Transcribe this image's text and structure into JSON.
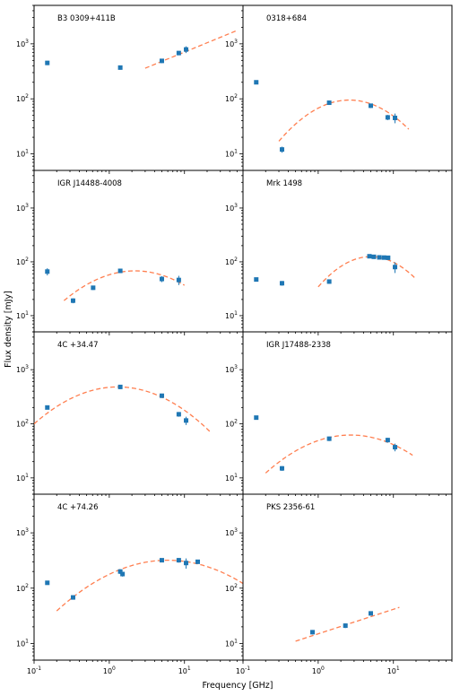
{
  "figure": {
    "xlabel": "Frequency [GHz]",
    "ylabel": "Flux density [mJy]",
    "marker_color": "#1f77b4",
    "fit_color": "#ff7f50"
  },
  "chart_data": [
    {
      "type": "scatter",
      "title": "B3 0309+411B",
      "xscale": "log",
      "yscale": "log",
      "xlim": [
        0.1,
        60
      ],
      "ylim": [
        5,
        5000
      ],
      "grid": false,
      "points": [
        {
          "x": 0.15,
          "y": 450,
          "yerr": 40
        },
        {
          "x": 1.4,
          "y": 370,
          "yerr": 30
        },
        {
          "x": 5.0,
          "y": 490,
          "yerr": 45
        },
        {
          "x": 8.4,
          "y": 680,
          "yerr": 60
        },
        {
          "x": 10.5,
          "y": 790,
          "yerr": 110
        }
      ],
      "fit": {
        "model": "power-law",
        "x_range": [
          3.0,
          50
        ],
        "points": [
          [
            3.0,
            360
          ],
          [
            50,
            1750
          ]
        ]
      }
    },
    {
      "type": "scatter",
      "title": "0318+684",
      "xscale": "log",
      "yscale": "log",
      "xlim": [
        0.1,
        60
      ],
      "ylim": [
        5,
        5000
      ],
      "grid": false,
      "points": [
        {
          "x": 0.15,
          "y": 200,
          "yerr": 15
        },
        {
          "x": 0.33,
          "y": 12,
          "yerr": 1.5
        },
        {
          "x": 1.4,
          "y": 85,
          "yerr": 7
        },
        {
          "x": 5.0,
          "y": 75,
          "yerr": 7
        },
        {
          "x": 8.4,
          "y": 46,
          "yerr": 5
        },
        {
          "x": 10.5,
          "y": 45,
          "yerr": 9
        }
      ],
      "fit": {
        "model": "log-parabola",
        "x_range": [
          0.3,
          16
        ],
        "peak": [
          2.6,
          95
        ],
        "curvature": 0.85
      }
    },
    {
      "type": "scatter",
      "title": "IGR J14488-4008",
      "xscale": "log",
      "yscale": "log",
      "xlim": [
        0.1,
        60
      ],
      "ylim": [
        5,
        5000
      ],
      "grid": false,
      "points": [
        {
          "x": 0.15,
          "y": 66,
          "yerr": 10
        },
        {
          "x": 0.33,
          "y": 19,
          "yerr": 2
        },
        {
          "x": 0.61,
          "y": 33,
          "yerr": 3
        },
        {
          "x": 1.4,
          "y": 68,
          "yerr": 6
        },
        {
          "x": 5.0,
          "y": 48,
          "yerr": 6
        },
        {
          "x": 8.4,
          "y": 46,
          "yerr": 9
        }
      ],
      "fit": {
        "model": "log-parabola",
        "x_range": [
          0.25,
          10
        ],
        "peak": [
          2.2,
          68
        ],
        "curvature": 0.62
      }
    },
    {
      "type": "scatter",
      "title": "Mrk 1498",
      "xscale": "log",
      "yscale": "log",
      "xlim": [
        0.1,
        60
      ],
      "ylim": [
        5,
        5000
      ],
      "grid": false,
      "points": [
        {
          "x": 0.15,
          "y": 47,
          "yerr": 4
        },
        {
          "x": 0.33,
          "y": 40,
          "yerr": 4
        },
        {
          "x": 1.4,
          "y": 43,
          "yerr": 4
        },
        {
          "x": 4.8,
          "y": 127,
          "yerr": 10
        },
        {
          "x": 5.5,
          "y": 124,
          "yerr": 10
        },
        {
          "x": 6.5,
          "y": 121,
          "yerr": 10
        },
        {
          "x": 7.5,
          "y": 120,
          "yerr": 10
        },
        {
          "x": 8.5,
          "y": 119,
          "yerr": 10
        },
        {
          "x": 10.5,
          "y": 80,
          "yerr": 18
        }
      ],
      "fit": {
        "model": "log-parabola",
        "x_range": [
          1.0,
          20
        ],
        "peak": [
          5.0,
          125
        ],
        "curvature": 1.15
      }
    },
    {
      "type": "scatter",
      "title": "4C +34.47",
      "xscale": "log",
      "yscale": "log",
      "xlim": [
        0.1,
        60
      ],
      "ylim": [
        5,
        5000
      ],
      "grid": false,
      "points": [
        {
          "x": 0.15,
          "y": 200,
          "yerr": 15
        },
        {
          "x": 1.4,
          "y": 480,
          "yerr": 40
        },
        {
          "x": 5.0,
          "y": 330,
          "yerr": 30
        },
        {
          "x": 8.4,
          "y": 150,
          "yerr": 15
        },
        {
          "x": 10.5,
          "y": 115,
          "yerr": 20
        }
      ],
      "fit": {
        "model": "log-parabola",
        "x_range": [
          0.1,
          22
        ],
        "peak": [
          1.3,
          480
        ],
        "curvature": 0.55
      }
    },
    {
      "type": "scatter",
      "title": "IGR J17488-2338",
      "xscale": "log",
      "yscale": "log",
      "xlim": [
        0.1,
        60
      ],
      "ylim": [
        5,
        5000
      ],
      "grid": false,
      "points": [
        {
          "x": 0.15,
          "y": 130,
          "yerr": 10
        },
        {
          "x": 0.33,
          "y": 15,
          "yerr": 1.5
        },
        {
          "x": 1.4,
          "y": 53,
          "yerr": 5
        },
        {
          "x": 8.4,
          "y": 50,
          "yerr": 5
        },
        {
          "x": 10.5,
          "y": 37,
          "yerr": 6
        }
      ],
      "fit": {
        "model": "log-parabola",
        "x_range": [
          0.2,
          18
        ],
        "peak": [
          2.7,
          62
        ],
        "curvature": 0.55
      }
    },
    {
      "type": "scatter",
      "title": "4C +74.26",
      "xscale": "log",
      "yscale": "log",
      "xlim": [
        0.1,
        60
      ],
      "ylim": [
        5,
        5000
      ],
      "grid": false,
      "points": [
        {
          "x": 0.15,
          "y": 125,
          "yerr": 10
        },
        {
          "x": 0.33,
          "y": 68,
          "yerr": 6
        },
        {
          "x": 1.4,
          "y": 200,
          "yerr": 20
        },
        {
          "x": 1.5,
          "y": 180,
          "yerr": 18
        },
        {
          "x": 5.0,
          "y": 320,
          "yerr": 25
        },
        {
          "x": 8.4,
          "y": 320,
          "yerr": 30
        },
        {
          "x": 10.5,
          "y": 285,
          "yerr": 60
        },
        {
          "x": 15.0,
          "y": 300,
          "yerr": 25
        }
      ],
      "fit": {
        "model": "log-parabola",
        "x_range": [
          0.2,
          60
        ],
        "peak": [
          6.0,
          320
        ],
        "curvature": 0.42
      }
    },
    {
      "type": "scatter",
      "title": "PKS 2356-61",
      "xscale": "log",
      "yscale": "log",
      "xlim": [
        0.1,
        60
      ],
      "ylim": [
        5,
        5000
      ],
      "grid": false,
      "points": [
        {
          "x": 0.84,
          "y": 16,
          "yerr": 1.5
        },
        {
          "x": 2.3,
          "y": 21,
          "yerr": 2
        },
        {
          "x": 5.0,
          "y": 35,
          "yerr": 3
        }
      ],
      "fit": {
        "model": "power-law",
        "x_range": [
          0.5,
          12
        ],
        "points": [
          [
            0.5,
            11
          ],
          [
            12,
            45
          ]
        ]
      }
    }
  ]
}
